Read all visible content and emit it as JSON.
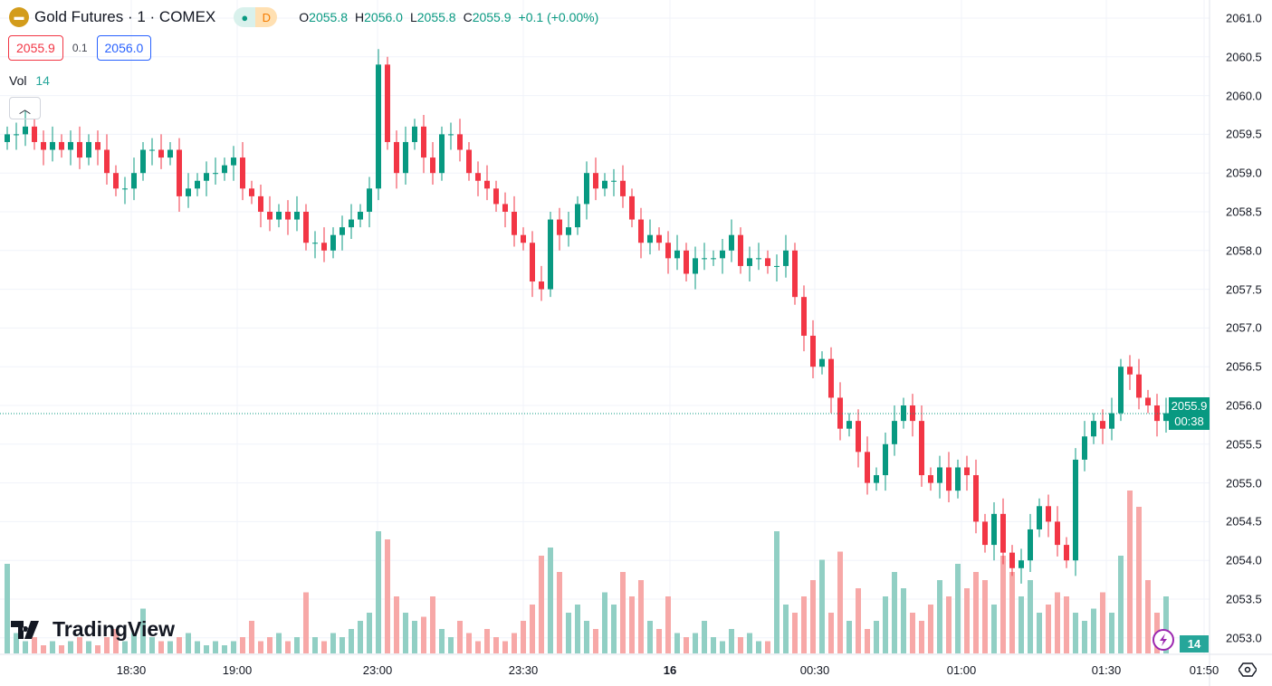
{
  "header": {
    "title": "Gold Futures · 1 · COMEX",
    "status_letter": "D",
    "ohlc": {
      "o_label": "O",
      "o": "2055.8",
      "h_label": "H",
      "h": "2056.0",
      "l_label": "L",
      "l": "2055.8",
      "c_label": "C",
      "c": "2055.9",
      "change": "+0.1 (+0.00%)"
    }
  },
  "quote": {
    "bid": "2055.9",
    "spread": "0.1",
    "ask": "2056.0"
  },
  "volume_legend": {
    "label": "Vol",
    "value": "14"
  },
  "current": {
    "price": "2055.9",
    "countdown": "00:38",
    "volume": "14"
  },
  "brand": "TradingView",
  "colors": {
    "up": "#089981",
    "down": "#f23645",
    "up_vol": "#91cfc4",
    "down_vol": "#f7a8a7"
  },
  "chart_data": {
    "type": "candlestick",
    "title": "Gold Futures · 1 · COMEX",
    "ylim": [
      2052.8,
      2061.2
    ],
    "yticks": [
      "2061.0",
      "2060.5",
      "2060.0",
      "2059.5",
      "2059.0",
      "2058.5",
      "2058.0",
      "2057.5",
      "2057.0",
      "2056.5",
      "2056.0",
      "2055.5",
      "2055.0",
      "2054.5",
      "2054.0",
      "2053.5",
      "2053.0"
    ],
    "xticks": [
      "18:30",
      "19:00",
      "23:00",
      "23:30",
      "16",
      "00:30",
      "01:00",
      "01:30",
      "01:50"
    ],
    "open0": 2059.4,
    "close": [
      2059.5,
      2059.5,
      2059.6,
      2059.4,
      2059.3,
      2059.4,
      2059.3,
      2059.4,
      2059.2,
      2059.4,
      2059.3,
      2059.0,
      2058.8,
      2058.8,
      2059.0,
      2059.3,
      2059.3,
      2059.2,
      2059.3,
      2058.7,
      2058.8,
      2058.9,
      2059.0,
      2059.0,
      2059.1,
      2059.2,
      2058.8,
      2058.7,
      2058.5,
      2058.4,
      2058.5,
      2058.4,
      2058.5,
      2058.1,
      2058.1,
      2058.0,
      2058.2,
      2058.3,
      2058.4,
      2058.5,
      2058.8,
      2060.4,
      2059.4,
      2059.0,
      2059.4,
      2059.6,
      2059.2,
      2059.0,
      2059.5,
      2059.5,
      2059.3,
      2059.0,
      2058.9,
      2058.8,
      2058.6,
      2058.5,
      2058.2,
      2058.1,
      2057.6,
      2057.5,
      2058.4,
      2058.2,
      2058.3,
      2058.6,
      2059.0,
      2058.8,
      2058.9,
      2058.9,
      2058.7,
      2058.4,
      2058.1,
      2058.2,
      2058.1,
      2057.9,
      2058.0,
      2057.7,
      2057.9,
      2057.9,
      2057.9,
      2058.0,
      2058.2,
      2057.8,
      2057.9,
      2057.9,
      2057.8,
      2057.8,
      2058.0,
      2057.4,
      2056.9,
      2056.5,
      2056.6,
      2056.1,
      2055.7,
      2055.8,
      2055.4,
      2055.0,
      2055.1,
      2055.5,
      2055.8,
      2056.0,
      2055.8,
      2055.1,
      2055.0,
      2055.2,
      2054.9,
      2055.2,
      2055.1,
      2054.5,
      2054.2,
      2054.6,
      2054.1,
      2053.9,
      2054.0,
      2054.4,
      2054.7,
      2054.5,
      2054.2,
      2054.0,
      2055.3,
      2055.6,
      2055.8,
      2055.7,
      2055.9,
      2056.5,
      2056.4,
      2056.1,
      2056.0,
      2055.8,
      2055.9
    ],
    "volume": [
      22,
      5,
      3,
      4,
      2,
      3,
      2,
      3,
      4,
      3,
      2,
      4,
      6,
      3,
      5,
      11,
      4,
      3,
      3,
      4,
      5,
      3,
      2,
      3,
      2,
      3,
      4,
      8,
      3,
      4,
      5,
      3,
      4,
      15,
      4,
      3,
      5,
      4,
      6,
      8,
      10,
      30,
      28,
      14,
      10,
      8,
      9,
      14,
      6,
      4,
      8,
      5,
      3,
      6,
      4,
      3,
      5,
      8,
      12,
      24,
      26,
      20,
      10,
      12,
      8,
      6,
      15,
      12,
      20,
      14,
      18,
      8,
      6,
      14,
      5,
      4,
      5,
      8,
      4,
      3,
      6,
      4,
      5,
      3,
      3,
      30,
      12,
      10,
      14,
      18,
      23,
      10,
      25,
      8,
      16,
      6,
      8,
      14,
      20,
      16,
      10,
      8,
      12,
      18,
      14,
      22,
      16,
      20,
      18,
      12,
      24,
      20,
      14,
      18,
      10,
      12,
      15,
      14,
      10,
      8,
      11,
      15,
      10,
      24,
      40,
      36,
      18,
      10,
      14
    ],
    "volume_max": 40
  }
}
